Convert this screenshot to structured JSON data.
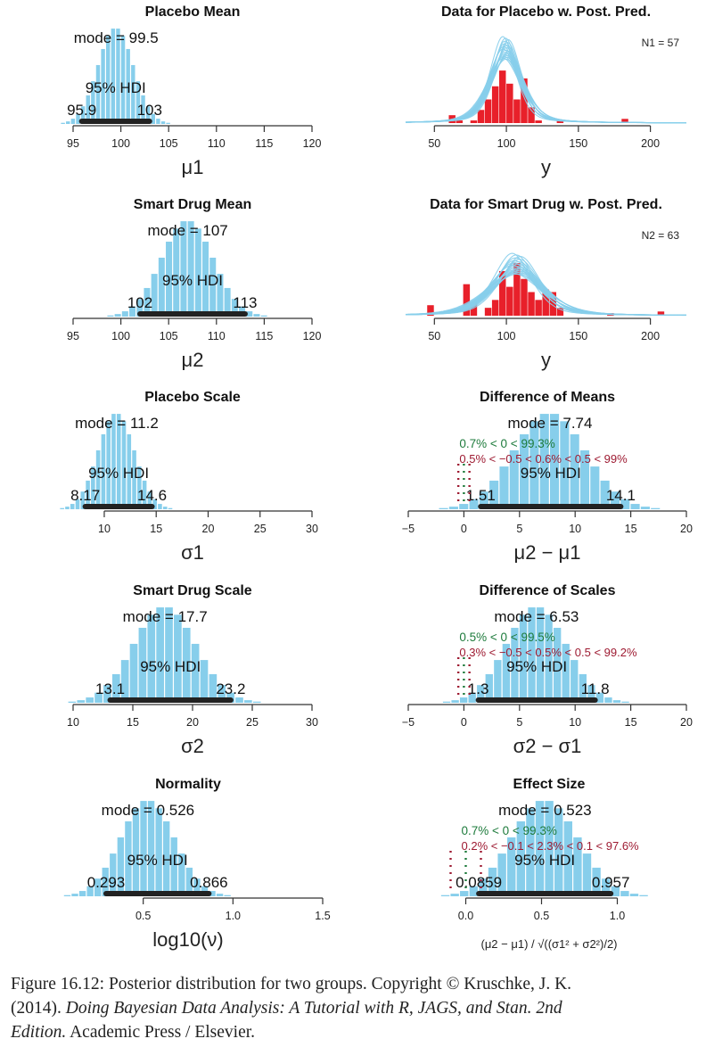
{
  "colors": {
    "bar": "#87ceeb",
    "data_bar": "#e8202a",
    "pred_line": "#87ceeb",
    "hdi": "#222222",
    "pct_green": "#1e7b3c",
    "pct_red": "#9e1b32",
    "text": "#111111"
  },
  "chart_data": [
    {
      "id": "placebo-mean",
      "type": "histogram",
      "title": "Placebo Mean",
      "xlabel": "μ1",
      "xlim": [
        95,
        120
      ],
      "ticks": [
        95,
        100,
        105,
        110,
        115,
        120
      ],
      "mode_label": "mode = 99.5",
      "mode": 99.5,
      "sd": 1.85,
      "hdi_label": "95% HDI",
      "hdi": [
        95.9,
        103
      ],
      "hdi_low_label": "95.9",
      "hdi_high_label": "103"
    },
    {
      "id": "placebo-data",
      "type": "histogram_pred",
      "title": "Data for Placebo w. Post. Pred.",
      "xlabel": "y",
      "xlim": [
        30,
        225
      ],
      "ticks": [
        50,
        100,
        150,
        200
      ],
      "n_label": "N1 = 57",
      "data_bins": [
        [
          60,
          65,
          0.15
        ],
        [
          65,
          70,
          0.05
        ],
        [
          75,
          80,
          0.05
        ],
        [
          80,
          85,
          0.25
        ],
        [
          85,
          90,
          0.45
        ],
        [
          90,
          95,
          0.7
        ],
        [
          95,
          100,
          1.0
        ],
        [
          100,
          105,
          0.75
        ],
        [
          105,
          110,
          0.45
        ],
        [
          110,
          115,
          0.85
        ],
        [
          115,
          120,
          0.3
        ],
        [
          120,
          125,
          0.05
        ],
        [
          135,
          140,
          0.05
        ],
        [
          180,
          185,
          0.08
        ]
      ],
      "pred": {
        "mu": 99.5,
        "sigma": 11.2,
        "peak": 1.4,
        "spread": [
          0.85,
          1.15
        ],
        "mu_spread": 4,
        "curves": 20
      }
    },
    {
      "id": "smart-mean",
      "type": "histogram",
      "title": "Smart Drug Mean",
      "xlabel": "μ2",
      "xlim": [
        95,
        120
      ],
      "ticks": [
        95,
        100,
        105,
        110,
        115,
        120
      ],
      "mode_label": "mode = 107",
      "mode": 107,
      "sd": 2.7,
      "hdi_label": "95% HDI",
      "hdi": [
        102,
        113
      ],
      "hdi_low_label": "102",
      "hdi_high_label": "113"
    },
    {
      "id": "smart-data",
      "type": "histogram_pred",
      "title": "Data for Smart Drug w. Post. Pred.",
      "xlabel": "y",
      "xlim": [
        30,
        225
      ],
      "ticks": [
        50,
        100,
        150,
        200
      ],
      "n_label": "N2 = 63",
      "data_bins": [
        [
          45,
          50,
          0.2
        ],
        [
          70,
          75,
          0.6
        ],
        [
          75,
          80,
          0.25
        ],
        [
          85,
          90,
          0.15
        ],
        [
          90,
          95,
          0.3
        ],
        [
          95,
          100,
          0.85
        ],
        [
          100,
          105,
          0.55
        ],
        [
          105,
          110,
          1.0
        ],
        [
          110,
          115,
          0.7
        ],
        [
          115,
          120,
          0.45
        ],
        [
          120,
          125,
          0.3
        ],
        [
          125,
          130,
          0.5
        ],
        [
          130,
          135,
          0.45
        ],
        [
          135,
          140,
          0.15
        ],
        [
          170,
          175,
          0.05
        ],
        [
          205,
          210,
          0.08
        ]
      ],
      "pred": {
        "mu": 107,
        "sigma": 17.7,
        "peak": 0.95,
        "spread": [
          0.8,
          1.2
        ],
        "mu_spread": 6,
        "curves": 20
      }
    },
    {
      "id": "placebo-scale",
      "type": "histogram",
      "title": "Placebo Scale",
      "xlabel": "σ1",
      "xlim": [
        7,
        30
      ],
      "ticks": [
        10,
        15,
        20,
        25,
        30
      ],
      "mode_label": "mode = 11.2",
      "mode": 11.2,
      "sd": 1.75,
      "hdi_label": "95% HDI",
      "hdi": [
        8.17,
        14.6
      ],
      "hdi_low_label": "8.17",
      "hdi_high_label": "14.6"
    },
    {
      "id": "diff-means",
      "type": "histogram",
      "title": "Difference of Means",
      "xlabel": "μ2 − μ1",
      "xlim": [
        -5,
        20
      ],
      "ticks": [
        -5,
        0,
        5,
        10,
        15,
        20
      ],
      "mode_label": "mode = 7.74",
      "mode": 7.74,
      "sd": 3.2,
      "hdi_label": "95% HDI",
      "hdi": [
        1.51,
        14.1
      ],
      "hdi_low_label": "1.51",
      "hdi_high_label": "14.1",
      "comp_label": "0.7% < 0 < 99.3%",
      "rope_label": "0.5% < −0.5 < 0.6% < 0.5 < 99%",
      "comp_value": 0,
      "rope": [
        -0.5,
        0.5
      ]
    },
    {
      "id": "smart-scale",
      "type": "histogram",
      "title": "Smart Drug Scale",
      "xlabel": "σ2",
      "xlim": [
        10,
        30
      ],
      "ticks": [
        10,
        15,
        20,
        25,
        30
      ],
      "mode_label": "mode = 17.7",
      "mode": 17.7,
      "sd": 2.6,
      "hdi_label": "95% HDI",
      "hdi": [
        13.1,
        23.2
      ],
      "hdi_low_label": "13.1",
      "hdi_high_label": "23.2"
    },
    {
      "id": "diff-scales",
      "type": "histogram",
      "title": "Difference of Scales",
      "xlabel": "σ2 − σ1",
      "xlim": [
        -5,
        20
      ],
      "ticks": [
        -5,
        0,
        5,
        10,
        15,
        20
      ],
      "mode_label": "mode = 6.53",
      "mode": 6.53,
      "sd": 2.7,
      "hdi_label": "95% HDI",
      "hdi": [
        1.3,
        11.8
      ],
      "hdi_low_label": "1.3",
      "hdi_high_label": "11.8",
      "comp_label": "0.5% < 0 < 99.5%",
      "rope_label": "0.3% < −0.5 < 0.5% < 0.5 < 99.2%",
      "comp_value": 0,
      "rope": [
        -0.5,
        0.5
      ]
    },
    {
      "id": "normality",
      "type": "histogram",
      "title": "Normality",
      "xlabel": "log10(ν)",
      "xlim": [
        0,
        1.5
      ],
      "ticks": [
        0.5,
        1.0,
        1.5
      ],
      "mode_label": "mode = 0.526",
      "mode": 0.526,
      "sd": 0.15,
      "hdi_label": "95% HDI",
      "hdi": [
        0.293,
        0.866
      ],
      "hdi_low_label": "0.293",
      "hdi_high_label": "0.866"
    },
    {
      "id": "effect-size",
      "type": "histogram",
      "title": "Effect Size",
      "xlabel": "(μ2 − μ1) / √((σ1² + σ2²)/2)",
      "xlim": [
        -0.15,
        1.25
      ],
      "ticks": [
        0.0,
        0.5,
        1.0
      ],
      "mode_label": "mode = 0.523",
      "mode": 0.523,
      "sd": 0.22,
      "hdi_label": "95% HDI",
      "hdi": [
        0.0859,
        0.957
      ],
      "hdi_low_label": "0.0859",
      "hdi_high_label": "0.957",
      "comp_label": "0.7% < 0 < 99.3%",
      "rope_label": "0.2% < −0.1 < 2.3% < 0.1 < 97.6%",
      "comp_value": 0,
      "rope": [
        -0.1,
        0.1
      ]
    }
  ],
  "caption": {
    "line1": "Figure 16.12: Posterior distribution for two groups.    Copyright © Kruschke, J. K.",
    "line2_prefix": "(2014). ",
    "line2_italic": "Doing Bayesian Data Analysis: A Tutorial with R, JAGS, and Stan.  2nd",
    "line3_italic": "Edition.",
    "line3_rest": " Academic Press / Elsevier."
  }
}
